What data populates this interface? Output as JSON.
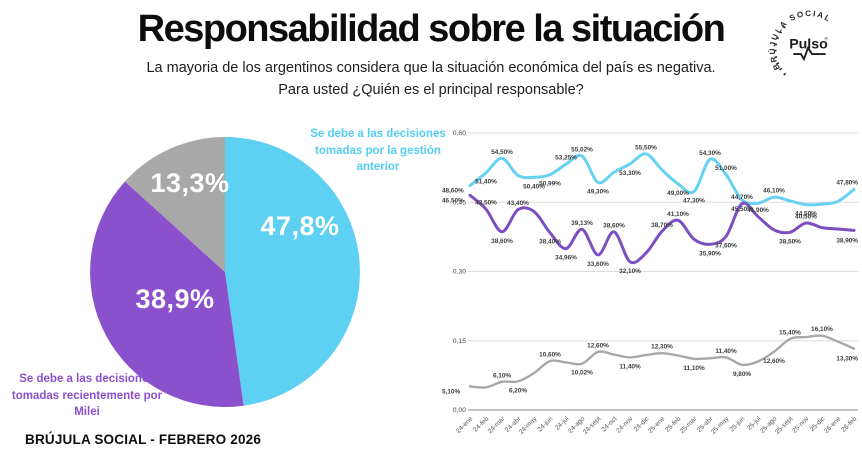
{
  "header": {
    "title": "Responsabilidad sobre la situación",
    "subtitle_lines": [
      "La mayoria de los argentinos considera que la situación económica del país es",
      "negativa. Para usted ¿Quién es el principal responsable?"
    ]
  },
  "logo": {
    "brand": "Pulso",
    "reg_mark": "®",
    "ring_text": "BRÚJULA SOCIAL"
  },
  "footer": {
    "source": "BRÚJULA SOCIAL - FEBRERO 2026"
  },
  "colors": {
    "cyan": "#5ed0f2",
    "purple": "#8b50cb",
    "purple_line": "#7b4fc0",
    "gray": "#a8a8a8",
    "data_label": "#3d3d3d"
  },
  "chart_data": [
    {
      "type": "pie",
      "slices": [
        {
          "label": "Se debe a las decisiones tomadas por la gestión anterior",
          "value": 47.8,
          "display": "47,8%",
          "color": "#5ed0f2"
        },
        {
          "label": "Se debe a las decisiones tomadas recientemente por Milei",
          "value": 38.9,
          "display": "38,9%",
          "color": "#8b50cb"
        },
        {
          "label": "",
          "value": 13.3,
          "display": "13,3%",
          "color": "#a8a8a8"
        }
      ],
      "annotations": {
        "gestion": "Se debe a las decisiones tomadas por la gestión anterior",
        "milei": "Se debe a las decisiones tomadas recientemente por Milei"
      }
    },
    {
      "type": "line",
      "x": [
        "24-ene",
        "24-feb",
        "24-mar",
        "24-abr",
        "24-may",
        "24-jun",
        "24-jul",
        "24-ago",
        "24-sept",
        "24-oct",
        "24-nov",
        "24-dic",
        "25-ene",
        "25-feb",
        "25-mar",
        "25-abr",
        "25-may",
        "25-jun",
        "25-jul",
        "25-ago",
        "25-sept",
        "25-nov",
        "25-dic",
        "26-ene",
        "26-feb"
      ],
      "ylim": [
        0,
        0.6
      ],
      "grid": true,
      "legend": "none",
      "yticks": [
        {
          "label": "0,00",
          "value": 0
        },
        {
          "label": "0,15",
          "value": 15
        },
        {
          "label": "0,30",
          "value": 30
        },
        {
          "label": "0,45",
          "value": 45
        },
        {
          "label": "0,60",
          "value": 60
        }
      ],
      "series": [
        {
          "name": "gestion-anterior",
          "color": "#66d2f2",
          "values": [
            48.6,
            51.4,
            54.5,
            50.8,
            50.4,
            50.99,
            53.25,
            55.02,
            49.3,
            51.5,
            53.3,
            55.5,
            52.0,
            49.0,
            47.3,
            54.3,
            51.0,
            45.5,
            44.8,
            46.1,
            45.3,
            44.5,
            44.6,
            45.2,
            47.8
          ],
          "labels": [
            "48,60%",
            "51,40%",
            "54,50%",
            "",
            "50,40%",
            "50,99%",
            "53,25%",
            "55,02%",
            "49,30%",
            "",
            "53,30%",
            "55,50%",
            "",
            "49,00%",
            "47,30%",
            "54,30%",
            "51,00%",
            "45,50%",
            "",
            "46,10%",
            "",
            "44,50%",
            "",
            "",
            "47,80%"
          ]
        },
        {
          "name": "milei",
          "color": "#7b4fc0",
          "values": [
            46.5,
            43.5,
            38.6,
            43.4,
            43.0,
            38.4,
            34.96,
            39.13,
            33.6,
            38.6,
            32.1,
            34.0,
            38.7,
            41.1,
            37.0,
            35.9,
            37.6,
            44.7,
            41.9,
            39.0,
            38.5,
            40.5,
            39.5,
            39.2,
            38.9
          ],
          "labels": [
            "46,50%",
            "43,50%",
            "38,60%",
            "43,40%",
            "",
            "38,40%",
            "34,96%",
            "39,13%",
            "33,60%",
            "38,60%",
            "32,10%",
            "",
            "38,70%",
            "41,10%",
            "",
            "35,90%",
            "37,60%",
            "44,70%",
            "41,90%",
            "",
            "38,50%",
            "40,50%",
            "",
            "",
            "38,90%"
          ]
        },
        {
          "name": "otros",
          "color": "#a8a8a8",
          "values": [
            5.1,
            4.9,
            6.1,
            6.2,
            8.0,
            10.6,
            10.3,
            10.02,
            12.6,
            12.0,
            11.4,
            11.9,
            12.3,
            11.8,
            11.1,
            11.2,
            11.4,
            9.8,
            10.5,
            12.6,
            15.4,
            15.8,
            16.1,
            14.8,
            13.3
          ],
          "labels": [
            "5,10%",
            "",
            "6,10%",
            "6,20%",
            "",
            "10,60%",
            "",
            "10,02%",
            "12,60%",
            "",
            "11,40%",
            "",
            "12,30%",
            "",
            "11,10%",
            "",
            "11,40%",
            "9,80%",
            "",
            "12,60%",
            "15,40%",
            "",
            "16,10%",
            "",
            "13,30%"
          ]
        }
      ]
    }
  ]
}
